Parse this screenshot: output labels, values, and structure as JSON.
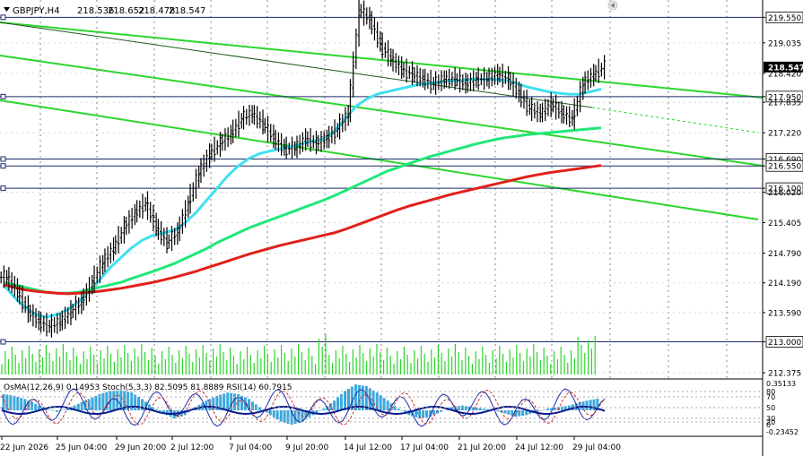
{
  "chart_data": {
    "type": "line",
    "title": "GBPJPY,H4",
    "ohlc": [
      "218.536",
      "218.652",
      "218.478",
      "218.547"
    ],
    "price_scale": {
      "ticks": [
        "219.550",
        "219.035",
        "218.420",
        "217.950",
        "217.835",
        "217.220",
        "216.690",
        "216.550",
        "216.100",
        "216.020",
        "215.405",
        "214.790",
        "214.190",
        "213.590",
        "213.000",
        "212.375"
      ],
      "current_price": "218.547",
      "ylim": [
        212.25,
        219.9
      ]
    },
    "horizontal_levels": [
      "219.550",
      "217.950",
      "216.690",
      "216.550",
      "216.100",
      "213.000"
    ],
    "x_axis_labels": [
      "22 Jun 2026",
      "25 Jun 04:00",
      "29 Jun 20:00",
      "2 Jul 12:00",
      "7 Jul 04:00",
      "9 Jul 20:00",
      "14 Jul 12:00",
      "17 Jul 04:00",
      "21 Jul 20:00",
      "24 Jul 12:00",
      "29 Jul 04:00"
    ],
    "price_series": [
      {
        "name": "price",
        "color": "#000000",
        "values": [
          214.3,
          214.0,
          213.6,
          213.4,
          213.3,
          213.4,
          213.6,
          213.8,
          214.2,
          214.6,
          214.9,
          215.3,
          215.6,
          215.8,
          215.3,
          215.0,
          215.2,
          215.8,
          216.4,
          216.8,
          217.0,
          217.2,
          217.5,
          217.6,
          217.4,
          217.1,
          216.9,
          216.9,
          217.1,
          217.0,
          217.1,
          217.3,
          217.6,
          219.7,
          219.5,
          219.0,
          218.7,
          218.5,
          218.4,
          218.3,
          218.2,
          218.3,
          218.3,
          218.2,
          218.3,
          218.3,
          218.4,
          218.3,
          218.0,
          217.7,
          217.6,
          217.8,
          217.6,
          217.5,
          218.2,
          218.4,
          218.55
        ]
      },
      {
        "name": "MA fast",
        "color": "#40e0f0",
        "values": [
          214.15,
          213.9,
          213.7,
          213.55,
          213.5,
          213.55,
          213.65,
          213.8,
          214.0,
          214.25,
          214.5,
          214.7,
          214.9,
          215.05,
          215.15,
          215.2,
          215.25,
          215.4,
          215.6,
          215.85,
          216.1,
          216.35,
          216.55,
          216.7,
          216.8,
          216.85,
          216.9,
          216.95,
          217.0,
          217.05,
          217.1,
          217.25,
          217.5,
          217.75,
          217.9,
          218.0,
          218.05,
          218.1,
          218.15,
          218.2,
          218.22,
          218.25,
          218.27,
          218.28,
          218.3,
          218.3,
          218.3,
          218.28,
          218.22,
          218.15,
          218.1,
          218.05,
          218.02,
          218.0,
          218.0,
          218.05,
          218.1
        ]
      },
      {
        "name": "MA medium",
        "color": "#20e878",
        "values": [
          214.2,
          214.15,
          214.1,
          214.05,
          214.0,
          213.98,
          213.98,
          214.0,
          214.05,
          214.1,
          214.15,
          214.2,
          214.28,
          214.35,
          214.42,
          214.5,
          214.58,
          214.68,
          214.78,
          214.88,
          215.0,
          215.1,
          215.2,
          215.3,
          215.38,
          215.46,
          215.54,
          215.62,
          215.7,
          215.78,
          215.86,
          215.95,
          216.05,
          216.15,
          216.25,
          216.35,
          216.45,
          216.52,
          216.6,
          216.67,
          216.74,
          216.8,
          216.86,
          216.92,
          216.98,
          217.03,
          217.08,
          217.12,
          217.15,
          217.18,
          217.2,
          217.22,
          217.24,
          217.26,
          217.28,
          217.3,
          217.32
        ]
      },
      {
        "name": "MA slow",
        "color": "#e0201a",
        "values": [
          214.15,
          214.1,
          214.05,
          214.02,
          214.0,
          213.98,
          213.97,
          213.98,
          214.0,
          214.02,
          214.05,
          214.08,
          214.12,
          214.16,
          214.2,
          214.25,
          214.3,
          214.36,
          214.42,
          214.49,
          214.56,
          214.63,
          214.7,
          214.77,
          214.83,
          214.89,
          214.95,
          215.0,
          215.05,
          215.1,
          215.15,
          215.2,
          215.27,
          215.35,
          215.43,
          215.51,
          215.59,
          215.67,
          215.74,
          215.8,
          215.86,
          215.92,
          215.98,
          216.03,
          216.08,
          216.13,
          216.18,
          216.23,
          216.28,
          216.33,
          216.37,
          216.41,
          216.44,
          216.47,
          216.5,
          216.53,
          216.56
        ]
      }
    ],
    "indicator_pane": {
      "label": "OsMA(12,26,9) 0.14953 Stoch(5,3,3) 82.5095 81.8889 RSI(14) 60.7915",
      "scale_ticks": [
        "0.35133",
        "80",
        "70",
        "50",
        "30",
        "20",
        "0",
        "-0.23452"
      ],
      "osma_values": [
        0.2,
        0.18,
        0.14,
        0.08,
        0.02,
        -0.02,
        0.02,
        0.08,
        0.14,
        0.2,
        0.24,
        0.25,
        0.22,
        0.14,
        0.04,
        -0.04,
        -0.1,
        -0.06,
        0.04,
        0.12,
        0.18,
        0.22,
        0.2,
        0.14,
        0.04,
        -0.06,
        -0.14,
        -0.18,
        -0.14,
        -0.06,
        0.02,
        0.12,
        0.24,
        0.32,
        0.3,
        0.22,
        0.12,
        0.02,
        -0.06,
        -0.1,
        -0.08,
        -0.02,
        0.04,
        0.06,
        0.04,
        0.02,
        0.0,
        -0.04,
        -0.08,
        -0.06,
        -0.02,
        0.02,
        0.04,
        0.06,
        0.1,
        0.13,
        0.15
      ]
    }
  }
}
